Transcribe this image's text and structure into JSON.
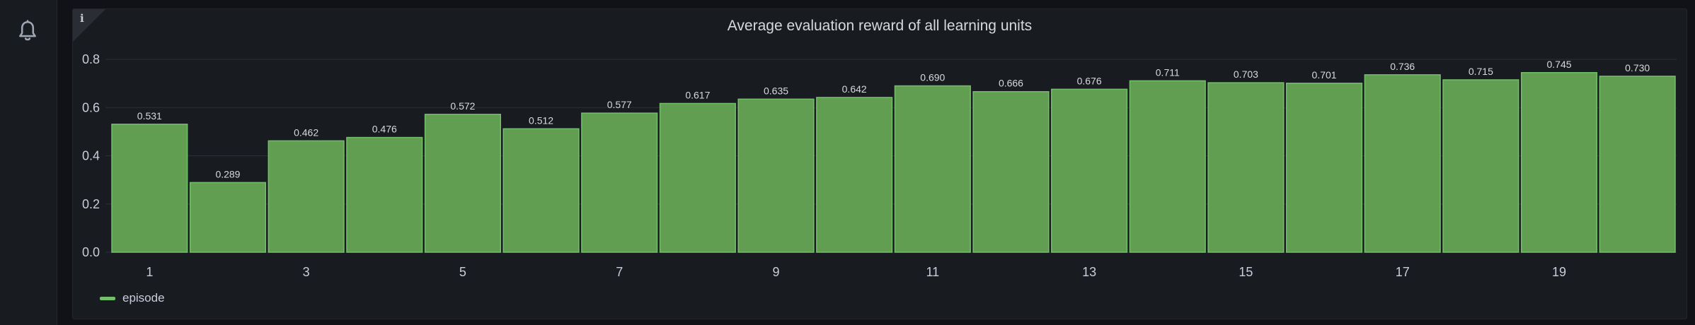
{
  "sidebar": {
    "icon": "bell-icon"
  },
  "panel": {
    "info_icon_label": "i",
    "title": "Average evaluation reward of all learning units"
  },
  "chart_data": {
    "type": "bar",
    "title": "Average evaluation reward of all learning units",
    "categories": [
      1,
      2,
      3,
      4,
      5,
      6,
      7,
      8,
      9,
      10,
      11,
      12,
      13,
      14,
      15,
      16,
      17,
      18,
      19,
      20
    ],
    "x_tick_labels": [
      "1",
      "3",
      "5",
      "7",
      "9",
      "11",
      "13",
      "15",
      "17",
      "19"
    ],
    "series": [
      {
        "name": "episode",
        "values": [
          0.531,
          0.289,
          0.462,
          0.476,
          0.572,
          0.512,
          0.577,
          0.617,
          0.635,
          0.642,
          0.69,
          0.666,
          0.676,
          0.711,
          0.703,
          0.701,
          0.736,
          0.715,
          0.745,
          0.73
        ],
        "labels": [
          "0.531",
          "0.289",
          "0.462",
          "0.476",
          "0.572",
          "0.512",
          "0.577",
          "0.617",
          "0.635",
          "0.642",
          "0.690",
          "0.666",
          "0.676",
          "0.711",
          "0.703",
          "0.701",
          "0.736",
          "0.715",
          "0.745",
          "0.730"
        ]
      }
    ],
    "y_ticks": [
      "0.0",
      "0.2",
      "0.4",
      "0.6",
      "0.8"
    ],
    "ylim": [
      0,
      0.8
    ],
    "grid": true,
    "legend_position": "bottom-left",
    "colors": {
      "bar_fill": "#629e51",
      "bar_stroke": "#73bf69",
      "grid": "#2c2f35",
      "axis_text": "#ccccdc",
      "label_text": "#d8d9de"
    }
  },
  "legend": {
    "items": [
      {
        "label": "episode",
        "color": "#73bf69"
      }
    ]
  }
}
